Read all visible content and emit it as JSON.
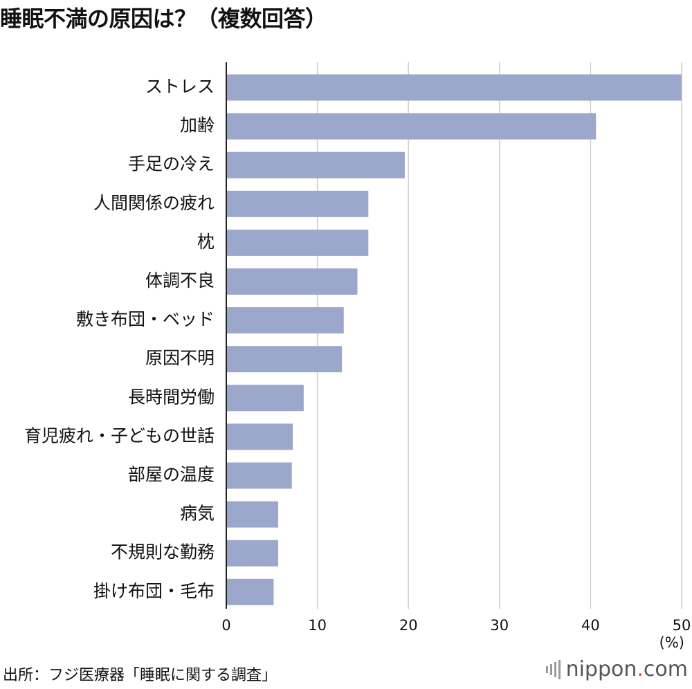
{
  "title": "睡眠不満の原因は？（複数回答）",
  "source": "出所：フジ医療器「睡眠に関する調査」",
  "brand": {
    "name": "nippon",
    "dot": ".",
    "tld": "com"
  },
  "colors": {
    "bar": "#9ba8cb",
    "grid": "#cccccc",
    "axis": "#222222",
    "brand_dot": "#e05a28"
  },
  "chart_data": {
    "type": "bar",
    "orientation": "horizontal",
    "unit_label": "(%)",
    "categories": [
      "ストレス",
      "加齢",
      "手足の冷え",
      "人間関係の疲れ",
      "枕",
      "体調不良",
      "敷き布団・ベッド",
      "原因不明",
      "長時間労働",
      "育児疲れ・子どもの世話",
      "部屋の温度",
      "病気",
      "不規則な勤務",
      "掛け布団・毛布"
    ],
    "values": [
      50.0,
      40.6,
      19.6,
      15.6,
      15.6,
      14.4,
      12.9,
      12.7,
      8.5,
      7.3,
      7.2,
      5.7,
      5.7,
      5.2
    ],
    "xlim": [
      0,
      50
    ],
    "ticks": [
      0,
      10,
      20,
      30,
      40,
      50
    ],
    "tick_labels": [
      "0",
      "10",
      "20",
      "30",
      "40",
      "50"
    ],
    "grid": true
  }
}
